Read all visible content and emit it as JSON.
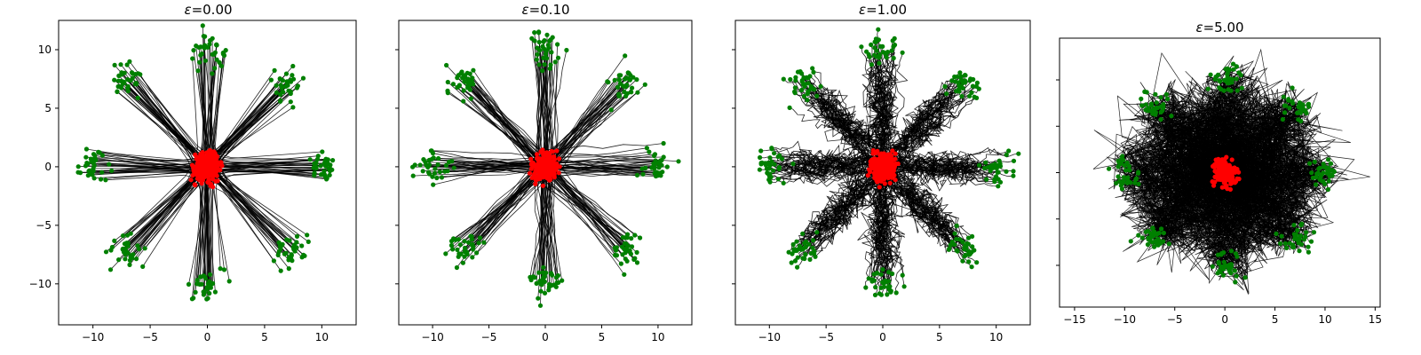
{
  "chart_data": [
    {
      "type": "scatter",
      "title_symbol": "ε",
      "title_value": "=0.00",
      "xlim": [
        -13,
        13
      ],
      "ylim": [
        -13.5,
        12.5
      ],
      "xticks": [
        -10,
        -5,
        0,
        5,
        10
      ],
      "xtick_labels": [
        "−10",
        "−5",
        "0",
        "5",
        "10"
      ],
      "yticks": [
        -10,
        -5,
        0,
        5,
        10
      ],
      "ytick_labels": [
        "−10",
        "−5",
        "0",
        "5",
        "10"
      ],
      "show_ytick_labels": true,
      "epsilon": 0.0,
      "ring_radius": 10,
      "source_center": [
        0,
        0
      ],
      "source_color": "#ff0000",
      "target_color": "#008000",
      "path_color": "#000000"
    },
    {
      "type": "scatter",
      "title_symbol": "ε",
      "title_value": "=0.10",
      "xlim": [
        -13,
        13
      ],
      "ylim": [
        -13.5,
        12.5
      ],
      "xticks": [
        -10,
        -5,
        0,
        5,
        10
      ],
      "xtick_labels": [
        "−10",
        "−5",
        "0",
        "5",
        "10"
      ],
      "yticks": [
        -10,
        -5,
        0,
        5,
        10
      ],
      "ytick_labels": [
        "",
        "",
        "",
        "",
        ""
      ],
      "show_ytick_labels": false,
      "epsilon": 0.1,
      "ring_radius": 10,
      "source_center": [
        0,
        0
      ],
      "source_color": "#ff0000",
      "target_color": "#008000",
      "path_color": "#000000"
    },
    {
      "type": "scatter",
      "title_symbol": "ε",
      "title_value": "=1.00",
      "xlim": [
        -13,
        13
      ],
      "ylim": [
        -13.5,
        12.5
      ],
      "xticks": [
        -10,
        -5,
        0,
        5,
        10
      ],
      "xtick_labels": [
        "−10",
        "−5",
        "0",
        "5",
        "10"
      ],
      "yticks": [
        -10,
        -5,
        0,
        5,
        10
      ],
      "ytick_labels": [
        "",
        "",
        "",
        "",
        ""
      ],
      "show_ytick_labels": false,
      "epsilon": 1.0,
      "ring_radius": 10,
      "source_center": [
        0,
        0
      ],
      "source_color": "#ff0000",
      "target_color": "#008000",
      "path_color": "#000000"
    },
    {
      "type": "scatter",
      "title_symbol": "ε",
      "title_value": "=5.00",
      "xlim": [
        -16.5,
        15.5
      ],
      "ylim": [
        -14.5,
        14.5
      ],
      "xticks": [
        -15,
        -10,
        -5,
        0,
        5,
        10,
        15
      ],
      "xtick_labels": [
        "−15",
        "−10",
        "−5",
        "0",
        "5",
        "10",
        "15"
      ],
      "yticks": [
        -10,
        -5,
        0,
        5,
        10
      ],
      "ytick_labels": [
        "",
        "",
        "",
        "",
        ""
      ],
      "show_ytick_labels": false,
      "epsilon": 5.0,
      "ring_radius": 10,
      "source_center": [
        0,
        0
      ],
      "source_color": "#ff0000",
      "target_color": "#008000",
      "path_color": "#000000"
    }
  ]
}
